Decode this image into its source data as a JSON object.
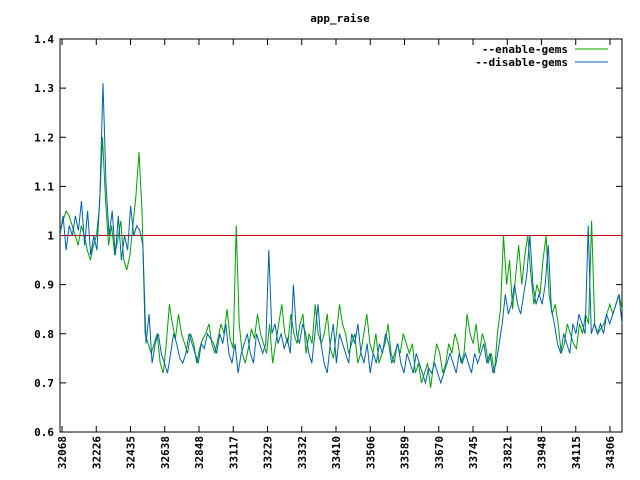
{
  "chart_data": {
    "type": "line",
    "title": "app_raise",
    "xlabel": "",
    "ylabel": "",
    "ylim": [
      0.6,
      1.4
    ],
    "yticks": [
      "0.6",
      "0.7",
      "0.8",
      "0.9",
      "1",
      "1.1",
      "1.2",
      "1.3",
      "1.4"
    ],
    "xticks": [
      "32068",
      "32226",
      "32435",
      "32638",
      "32848",
      "33117",
      "33229",
      "33332",
      "33410",
      "33506",
      "33589",
      "33670",
      "33745",
      "33821",
      "33948",
      "34115",
      "34306"
    ],
    "legend_position": "top-right",
    "reference_line": {
      "y": 1,
      "color": "#cc0000"
    },
    "series": [
      {
        "name": "--enable-gems",
        "color": "#00a000",
        "values": [
          1.01,
          1.03,
          1.05,
          1.04,
          1.02,
          1.0,
          0.98,
          1.02,
          1.0,
          0.97,
          0.95,
          0.98,
          1.0,
          1.06,
          1.2,
          1.07,
          0.98,
          1.02,
          0.96,
          0.99,
          1.03,
          0.95,
          0.93,
          0.96,
          1.02,
          1.08,
          1.17,
          1.05,
          0.8,
          0.78,
          0.76,
          0.78,
          0.8,
          0.74,
          0.72,
          0.78,
          0.86,
          0.82,
          0.79,
          0.84,
          0.8,
          0.78,
          0.76,
          0.8,
          0.78,
          0.74,
          0.77,
          0.79,
          0.8,
          0.82,
          0.78,
          0.76,
          0.79,
          0.82,
          0.8,
          0.85,
          0.79,
          0.77,
          1.02,
          0.82,
          0.76,
          0.74,
          0.77,
          0.81,
          0.79,
          0.84,
          0.8,
          0.78,
          0.76,
          0.82,
          0.74,
          0.78,
          0.82,
          0.86,
          0.8,
          0.78,
          0.84,
          0.8,
          0.78,
          0.82,
          0.84,
          0.76,
          0.8,
          0.78,
          0.86,
          0.8,
          0.78,
          0.8,
          0.84,
          0.77,
          0.75,
          0.8,
          0.86,
          0.82,
          0.8,
          0.76,
          0.78,
          0.8,
          0.74,
          0.76,
          0.8,
          0.84,
          0.78,
          0.76,
          0.8,
          0.74,
          0.76,
          0.78,
          0.82,
          0.76,
          0.74,
          0.78,
          0.76,
          0.8,
          0.78,
          0.76,
          0.78,
          0.72,
          0.74,
          0.7,
          0.72,
          0.74,
          0.69,
          0.74,
          0.78,
          0.76,
          0.72,
          0.74,
          0.78,
          0.76,
          0.8,
          0.78,
          0.74,
          0.76,
          0.84,
          0.8,
          0.78,
          0.82,
          0.76,
          0.8,
          0.78,
          0.74,
          0.76,
          0.72,
          0.8,
          0.85,
          1.0,
          0.9,
          0.95,
          0.85,
          0.92,
          0.98,
          0.9,
          0.96,
          1.0,
          0.92,
          0.86,
          0.9,
          0.88,
          0.95,
          1.0,
          0.88,
          0.84,
          0.86,
          0.82,
          0.76,
          0.78,
          0.82,
          0.8,
          0.78,
          0.77,
          0.82,
          0.8,
          0.84,
          0.82,
          1.03,
          0.82,
          0.8,
          0.81,
          0.82,
          0.84,
          0.86,
          0.84,
          0.86,
          0.88,
          0.85
        ]
      },
      {
        "name": "--disable-gems",
        "color": "#0060b0",
        "values": [
          1.0,
          1.04,
          0.97,
          1.02,
          1.0,
          1.04,
          1.01,
          1.07,
          0.98,
          1.05,
          0.96,
          1.0,
          0.97,
          1.08,
          1.31,
          1.1,
          1.0,
          1.05,
          0.96,
          1.04,
          0.95,
          1.0,
          0.97,
          1.06,
          1.0,
          1.02,
          1.01,
          0.98,
          0.78,
          0.84,
          0.74,
          0.78,
          0.8,
          0.76,
          0.74,
          0.72,
          0.76,
          0.8,
          0.78,
          0.75,
          0.74,
          0.76,
          0.8,
          0.78,
          0.76,
          0.74,
          0.78,
          0.77,
          0.8,
          0.79,
          0.78,
          0.76,
          0.8,
          0.78,
          0.82,
          0.76,
          0.74,
          0.78,
          0.72,
          0.76,
          0.78,
          0.8,
          0.76,
          0.74,
          0.8,
          0.78,
          0.76,
          0.78,
          0.97,
          0.8,
          0.82,
          0.78,
          0.8,
          0.77,
          0.79,
          0.76,
          0.9,
          0.8,
          0.78,
          0.82,
          0.8,
          0.76,
          0.74,
          0.8,
          0.86,
          0.78,
          0.74,
          0.72,
          0.78,
          0.82,
          0.74,
          0.8,
          0.78,
          0.76,
          0.74,
          0.8,
          0.78,
          0.82,
          0.76,
          0.74,
          0.78,
          0.72,
          0.76,
          0.74,
          0.78,
          0.76,
          0.8,
          0.78,
          0.74,
          0.76,
          0.78,
          0.74,
          0.72,
          0.76,
          0.74,
          0.72,
          0.76,
          0.74,
          0.72,
          0.7,
          0.73,
          0.72,
          0.74,
          0.72,
          0.7,
          0.72,
          0.74,
          0.76,
          0.74,
          0.72,
          0.76,
          0.74,
          0.76,
          0.74,
          0.72,
          0.76,
          0.74,
          0.76,
          0.78,
          0.74,
          0.76,
          0.72,
          0.74,
          0.78,
          0.82,
          0.88,
          0.84,
          0.86,
          0.9,
          0.86,
          0.84,
          0.88,
          0.92,
          1.0,
          0.9,
          0.86,
          0.88,
          0.86,
          0.9,
          0.98,
          0.85,
          0.82,
          0.78,
          0.76,
          0.8,
          0.78,
          0.76,
          0.82,
          0.8,
          0.84,
          0.82,
          0.8,
          1.02,
          0.8,
          0.82,
          0.8,
          0.82,
          0.8,
          0.84,
          0.82,
          0.84,
          0.86,
          0.88,
          0.82
        ]
      }
    ]
  }
}
